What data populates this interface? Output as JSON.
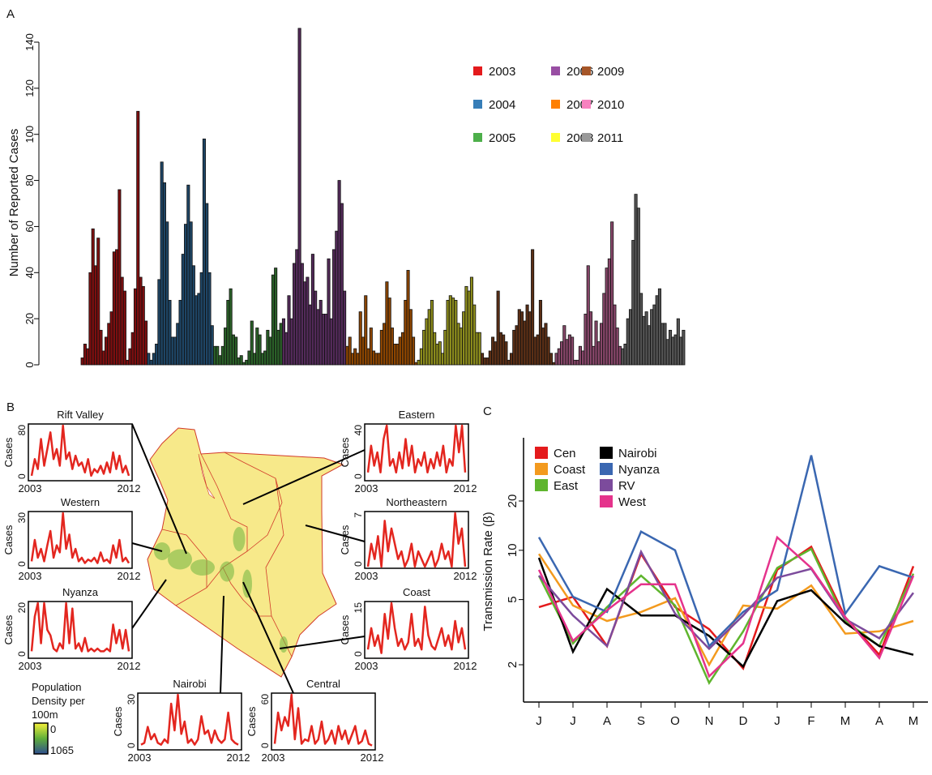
{
  "chart_data": [
    {
      "panel": "A",
      "type": "bar",
      "ylabel": "Number of Reported Cases",
      "ylim": [
        0,
        145
      ],
      "yticks": [
        0,
        20,
        40,
        60,
        80,
        100,
        120,
        140
      ],
      "legend_placement": "top-right",
      "series": [
        {
          "name": "2003",
          "color": "#e41a1c",
          "values": [
            3,
            9,
            7,
            40,
            59,
            43,
            55,
            15,
            6,
            12,
            18,
            23,
            49,
            50,
            76,
            38,
            32,
            2,
            7,
            14,
            33,
            110,
            38,
            34,
            19
          ]
        },
        {
          "name": "2004",
          "color": "#377eb8",
          "values": [
            5,
            2,
            5,
            9,
            37,
            88,
            79,
            62,
            28,
            12,
            12,
            18,
            28,
            48,
            61,
            78,
            62,
            43,
            30,
            31,
            40,
            98,
            70,
            40,
            17
          ]
        },
        {
          "name": "2005",
          "color": "#4daf4a",
          "values": [
            8,
            8,
            4,
            8,
            16,
            28,
            33,
            13,
            12,
            3,
            4,
            1,
            2,
            6,
            19,
            5,
            16,
            13,
            5,
            6,
            15,
            12,
            39,
            42,
            15,
            18
          ]
        },
        {
          "name": "2006",
          "color": "#984ea3",
          "values": [
            20,
            14,
            30,
            20,
            44,
            50,
            146,
            44,
            36,
            38,
            26,
            48,
            32,
            24,
            28,
            22,
            22,
            46,
            20,
            50,
            58,
            80,
            70,
            32
          ]
        },
        {
          "name": "2007",
          "color": "#ff7f00",
          "values": [
            8,
            12,
            5,
            7,
            5,
            23,
            12,
            30,
            7,
            16,
            6,
            5,
            5,
            15,
            18,
            36,
            29,
            16,
            9,
            9,
            12,
            14,
            28,
            41,
            24,
            12,
            1
          ]
        },
        {
          "name": "2008",
          "color": "#ffff33",
          "values": [
            2,
            7,
            15,
            20,
            24,
            28,
            14,
            9,
            10,
            5,
            15,
            28,
            30,
            29,
            28,
            18,
            16,
            23,
            34,
            32,
            38,
            26,
            14,
            14
          ]
        },
        {
          "name": "2009",
          "color": "#a65628",
          "values": [
            5,
            3,
            3,
            6,
            12,
            10,
            32,
            14,
            13,
            10,
            2,
            5,
            15,
            17,
            24,
            23,
            19,
            26,
            23,
            50,
            12,
            13,
            28,
            16,
            18,
            12,
            5,
            1
          ]
        },
        {
          "name": "2010",
          "color": "#f781bf",
          "values": [
            5,
            7,
            10,
            17,
            11,
            13,
            12,
            2,
            2,
            8,
            6,
            22,
            43,
            23,
            8,
            19,
            10,
            18,
            31,
            42,
            46,
            62,
            26,
            16,
            8
          ]
        },
        {
          "name": "2011",
          "color": "#999999",
          "values": [
            7,
            9,
            20,
            24,
            54,
            74,
            68,
            31,
            21,
            23,
            17,
            24,
            26,
            30,
            33,
            18,
            18,
            11,
            15,
            12,
            13,
            20,
            12,
            15
          ]
        }
      ]
    },
    {
      "panel": "C",
      "type": "line",
      "ylabel": "Transmission Rate (β)",
      "yscale": "log",
      "ylim": [
        1.45,
        45
      ],
      "yticks": [
        2,
        5,
        10,
        20
      ],
      "categories": [
        "J",
        "J",
        "A",
        "S",
        "O",
        "N",
        "D",
        "J",
        "F",
        "M",
        "A",
        "M"
      ],
      "legend_placement": "top-left",
      "series": [
        {
          "name": "Cen",
          "color": "#e41a1c",
          "values": [
            4.5,
            5.2,
            2.6,
            9.5,
            4.5,
            3.3,
            1.9,
            7.6,
            10.5,
            3.9,
            2.3,
            8
          ]
        },
        {
          "name": "Coast",
          "color": "#f39a1e",
          "values": [
            9.5,
            4.6,
            3.7,
            4.2,
            5.1,
            2.0,
            4.6,
            4.4,
            6.1,
            3.1,
            3.2,
            3.7
          ]
        },
        {
          "name": "East",
          "color": "#5fb52e",
          "values": [
            7,
            2.7,
            4.5,
            7,
            4.6,
            1.55,
            3.2,
            7.8,
            10.2,
            3.7,
            2.6,
            7.2
          ]
        },
        {
          "name": "Nairobi",
          "color": "#000000",
          "values": [
            9,
            2.4,
            5.8,
            4,
            4,
            3.0,
            1.95,
            4.9,
            5.7,
            3.6,
            2.6,
            2.3
          ]
        },
        {
          "name": "Nyanza",
          "color": "#3a67b1",
          "values": [
            12,
            5.2,
            4.2,
            13,
            10,
            2.6,
            4.2,
            5.7,
            38,
            4.1,
            8,
            6.8
          ]
        },
        {
          "name": "RV",
          "color": "#7c4b9c",
          "values": [
            7,
            4,
            2.6,
            9.8,
            4.1,
            2.5,
            4,
            6.8,
            7.7,
            3.8,
            2.9,
            5.5
          ]
        },
        {
          "name": "West",
          "color": "#e5338c",
          "values": [
            7.6,
            2.8,
            4.3,
            6.2,
            6.2,
            1.7,
            2.7,
            12,
            7.8,
            3.9,
            2.2,
            7
          ]
        }
      ]
    }
  ],
  "panel_labels": {
    "a": "A",
    "b": "B",
    "c": "C"
  },
  "map": {
    "fill": "#f7e98a",
    "border": "#d23a2a",
    "legend": {
      "title_line1": "Population",
      "title_line2": "Density per",
      "title_line3": "100m",
      "min": "0",
      "max": "1065"
    },
    "insets": [
      {
        "name": "Rift Valley",
        "ylabel": "Cases",
        "ymax": 80,
        "x_start": "2003",
        "x_end": "2012",
        "values": [
          5,
          30,
          15,
          60,
          20,
          45,
          70,
          30,
          45,
          20,
          80,
          30,
          40,
          15,
          35,
          20,
          25,
          10,
          30,
          5,
          15,
          10,
          20,
          8,
          25,
          10,
          40,
          15,
          35,
          10,
          20,
          5
        ]
      },
      {
        "name": "Western",
        "ylabel": "Cases",
        "ymax": 30,
        "x_start": "2003",
        "x_end": "2012",
        "values": [
          3,
          15,
          5,
          10,
          3,
          12,
          20,
          5,
          12,
          8,
          30,
          10,
          18,
          5,
          10,
          3,
          5,
          2,
          4,
          3,
          5,
          2,
          8,
          3,
          4,
          2,
          12,
          5,
          15,
          3,
          5,
          2
        ]
      },
      {
        "name": "Nyanza",
        "ylabel": "Cases",
        "ymax": 20,
        "x_start": "2003",
        "x_end": "2012",
        "values": [
          2,
          15,
          20,
          5,
          22,
          10,
          8,
          3,
          2,
          5,
          3,
          22,
          5,
          18,
          3,
          5,
          2,
          7,
          2,
          3,
          2,
          3,
          2,
          2,
          3,
          2,
          12,
          5,
          10,
          3,
          10,
          2
        ]
      },
      {
        "name": "Nairobi",
        "ylabel": "Cases",
        "ymax": 30,
        "x_start": "2003",
        "x_end": "2012",
        "values": [
          2,
          3,
          12,
          5,
          8,
          3,
          2,
          5,
          3,
          25,
          10,
          30,
          8,
          15,
          3,
          5,
          2,
          5,
          18,
          8,
          10,
          3,
          10,
          5,
          3,
          5,
          20,
          5,
          3,
          2
        ]
      },
      {
        "name": "Central",
        "ylabel": "Cases",
        "ymax": 60,
        "x_start": "2003",
        "x_end": "2012",
        "values": [
          5,
          40,
          20,
          35,
          25,
          65,
          10,
          45,
          5,
          10,
          8,
          25,
          5,
          10,
          30,
          5,
          10,
          20,
          5,
          25,
          10,
          20,
          5,
          15,
          25,
          5,
          8,
          20,
          5,
          3
        ]
      },
      {
        "name": "Eastern",
        "ylabel": "Cases",
        "ymax": 40,
        "x_start": "2003",
        "x_end": "2012",
        "values": [
          5,
          25,
          10,
          20,
          5,
          30,
          40,
          10,
          15,
          5,
          20,
          8,
          30,
          10,
          25,
          5,
          15,
          10,
          20,
          5,
          15,
          8,
          20,
          10,
          25,
          5,
          15,
          10,
          45,
          20,
          40,
          5
        ]
      },
      {
        "name": "Northeastern",
        "ylabel": "Cases",
        "ymax": 7,
        "x_start": "2003",
        "x_end": "2012",
        "values": [
          0,
          3,
          1,
          4,
          0,
          6,
          2,
          5,
          3,
          1,
          2,
          0,
          1,
          3,
          0,
          2,
          1,
          0,
          1,
          2,
          0,
          1,
          3,
          1,
          2,
          0,
          7,
          3,
          5,
          0
        ]
      },
      {
        "name": "Coast",
        "ylabel": "Cases",
        "ymax": 15,
        "x_start": "2003",
        "x_end": "2012",
        "values": [
          2,
          8,
          3,
          6,
          1,
          12,
          5,
          15,
          8,
          3,
          5,
          2,
          4,
          12,
          3,
          5,
          2,
          14,
          6,
          3,
          2,
          5,
          8,
          3,
          6,
          2,
          10,
          4,
          8,
          2
        ]
      }
    ]
  }
}
